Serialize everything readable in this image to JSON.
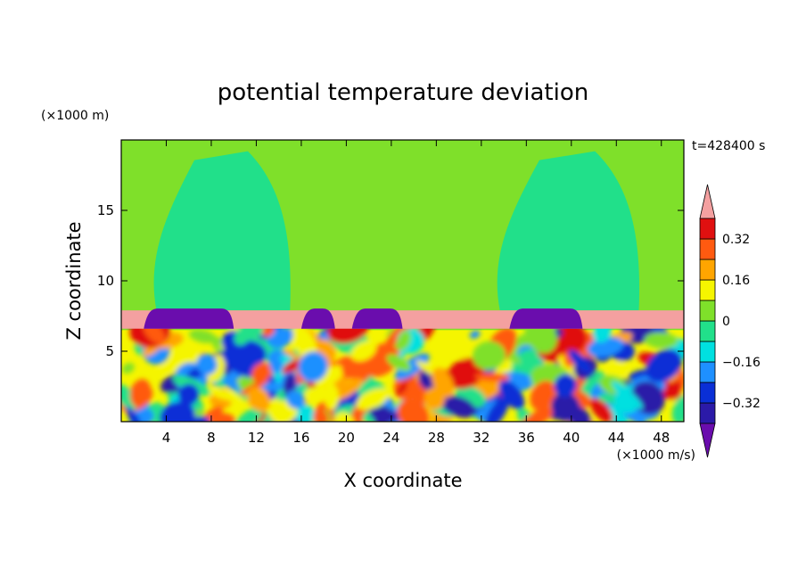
{
  "chart_data": {
    "type": "heatmap",
    "title": "potential temperature deviation",
    "xlabel": "X coordinate",
    "ylabel": "Z coordinate",
    "x_unit": "(×1000 m/s)",
    "y_unit": "(×1000 m)",
    "time_label": "t=428400 s",
    "xlim": [
      0,
      50
    ],
    "ylim": [
      0,
      20
    ],
    "xticks": [
      4,
      8,
      12,
      16,
      20,
      24,
      28,
      32,
      36,
      40,
      44,
      48
    ],
    "yticks": [
      5,
      10,
      15
    ],
    "colorbar": {
      "levels": [
        -0.4,
        -0.32,
        -0.24,
        -0.16,
        -0.08,
        0,
        0.08,
        0.16,
        0.24,
        0.32,
        0.4
      ],
      "colors": [
        "#6a0dad",
        "#2b1aa8",
        "#0a2fd6",
        "#1e90ff",
        "#00e0e0",
        "#21e08a",
        "#7fe02a",
        "#f5f500",
        "#ffa500",
        "#ff5a10",
        "#e01010",
        "#f4a0a0"
      ],
      "tick_labels": [
        "0.32",
        "0.16",
        "0",
        "−0.16",
        "−0.32"
      ],
      "tick_values": [
        0.32,
        0.16,
        0,
        -0.16,
        -0.32
      ]
    },
    "regions": {
      "upper_background_level": 0.04,
      "upper_plumes_level": -0.04,
      "plume_x_ranges": [
        [
          2.5,
          15
        ],
        [
          33,
          46
        ]
      ],
      "inversion_band_z": [
        6.6,
        7.9
      ],
      "inversion_band_level": 0.42,
      "dark_patches_x_ranges": [
        [
          2,
          10
        ],
        [
          16,
          19
        ],
        [
          20.5,
          25
        ],
        [
          34.5,
          41
        ]
      ],
      "boundary_layer_top_z": 6.5,
      "boundary_layer_range": [
        -0.36,
        0.36
      ]
    }
  }
}
